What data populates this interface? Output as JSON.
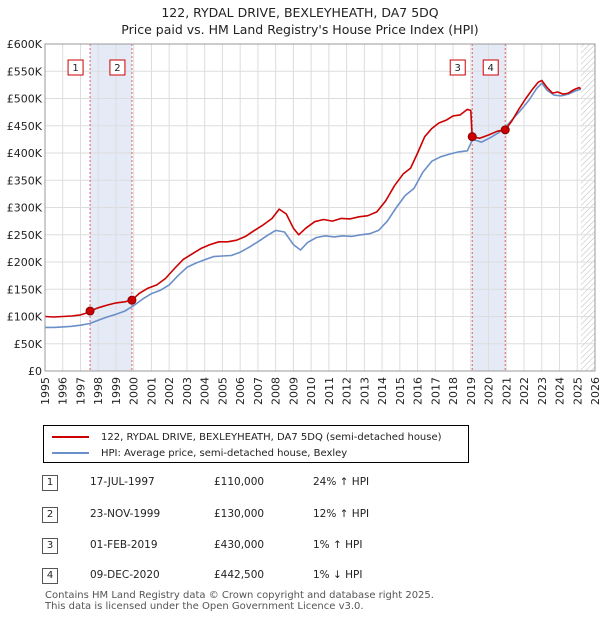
{
  "title_line1": "122, RYDAL DRIVE, BEXLEYHEATH, DA7 5DQ",
  "title_line2": "Price paid vs. HM Land Registry's House Price Index (HPI)",
  "chart_data": {
    "type": "line",
    "xlim": [
      1995,
      2026
    ],
    "ylim": [
      0,
      600000
    ],
    "x_ticks": [
      "1995",
      "1996",
      "1997",
      "1998",
      "1999",
      "2000",
      "2001",
      "2002",
      "2003",
      "2004",
      "2005",
      "2006",
      "2007",
      "2008",
      "2009",
      "2010",
      "2011",
      "2012",
      "2013",
      "2014",
      "2015",
      "2016",
      "2017",
      "2018",
      "2019",
      "2020",
      "2021",
      "2022",
      "2023",
      "2024",
      "2025",
      "2026"
    ],
    "y_ticks": [
      {
        "value": 0,
        "label": "£0"
      },
      {
        "value": 50000,
        "label": "£50K"
      },
      {
        "value": 100000,
        "label": "£100K"
      },
      {
        "value": 150000,
        "label": "£150K"
      },
      {
        "value": 200000,
        "label": "£200K"
      },
      {
        "value": 250000,
        "label": "£250K"
      },
      {
        "value": 300000,
        "label": "£300K"
      },
      {
        "value": 350000,
        "label": "£350K"
      },
      {
        "value": 400000,
        "label": "£400K"
      },
      {
        "value": 450000,
        "label": "£450K"
      },
      {
        "value": 500000,
        "label": "£500K"
      },
      {
        "value": 550000,
        "label": "£550K"
      },
      {
        "value": 600000,
        "label": "£600K"
      }
    ],
    "grid": true,
    "shaded_periods": [
      [
        1997.54,
        1999.9
      ],
      [
        2019.08,
        2020.94
      ]
    ],
    "hatched_region_start": 2025.2,
    "series": [
      {
        "name": "122, RYDAL DRIVE, BEXLEYHEATH, DA7 5DQ (semi-detached house)",
        "color": "#cc0000",
        "points": [
          [
            1995,
            100000
          ],
          [
            1995.5,
            99000
          ],
          [
            1996,
            100000
          ],
          [
            1996.5,
            101000
          ],
          [
            1997,
            103000
          ],
          [
            1997.3,
            106000
          ],
          [
            1997.54,
            110000
          ],
          [
            1998,
            116000
          ],
          [
            1998.5,
            121000
          ],
          [
            1999,
            125000
          ],
          [
            1999.5,
            127000
          ],
          [
            1999.9,
            130000
          ],
          [
            2000.3,
            142000
          ],
          [
            2000.8,
            152000
          ],
          [
            2001.3,
            158000
          ],
          [
            2001.8,
            170000
          ],
          [
            2002.3,
            188000
          ],
          [
            2002.8,
            205000
          ],
          [
            2003.3,
            215000
          ],
          [
            2003.8,
            225000
          ],
          [
            2004.3,
            232000
          ],
          [
            2004.8,
            237000
          ],
          [
            2005.3,
            237000
          ],
          [
            2005.8,
            240000
          ],
          [
            2006.3,
            247000
          ],
          [
            2006.8,
            258000
          ],
          [
            2007.3,
            268000
          ],
          [
            2007.8,
            280000
          ],
          [
            2008.2,
            297000
          ],
          [
            2008.6,
            288000
          ],
          [
            2009.0,
            262000
          ],
          [
            2009.3,
            250000
          ],
          [
            2009.7,
            262000
          ],
          [
            2010.2,
            274000
          ],
          [
            2010.7,
            278000
          ],
          [
            2011.2,
            275000
          ],
          [
            2011.7,
            280000
          ],
          [
            2012.2,
            279000
          ],
          [
            2012.7,
            283000
          ],
          [
            2013.2,
            285000
          ],
          [
            2013.7,
            292000
          ],
          [
            2014.2,
            312000
          ],
          [
            2014.7,
            340000
          ],
          [
            2015.2,
            362000
          ],
          [
            2015.6,
            372000
          ],
          [
            2016.0,
            400000
          ],
          [
            2016.4,
            430000
          ],
          [
            2016.8,
            445000
          ],
          [
            2017.2,
            455000
          ],
          [
            2017.6,
            460000
          ],
          [
            2018.0,
            468000
          ],
          [
            2018.4,
            470000
          ],
          [
            2018.8,
            480000
          ],
          [
            2019.0,
            478000
          ],
          [
            2019.08,
            430000
          ],
          [
            2019.5,
            427000
          ],
          [
            2020.0,
            433000
          ],
          [
            2020.5,
            440000
          ],
          [
            2020.94,
            442500
          ],
          [
            2021.3,
            458000
          ],
          [
            2021.7,
            480000
          ],
          [
            2022.1,
            500000
          ],
          [
            2022.5,
            518000
          ],
          [
            2022.8,
            530000
          ],
          [
            2023.0,
            533000
          ],
          [
            2023.3,
            520000
          ],
          [
            2023.6,
            510000
          ],
          [
            2023.9,
            512000
          ],
          [
            2024.2,
            508000
          ],
          [
            2024.5,
            510000
          ],
          [
            2024.8,
            516000
          ],
          [
            2025.1,
            520000
          ],
          [
            2025.2,
            518000
          ]
        ]
      },
      {
        "name": "HPI: Average price, semi-detached house, Bexley",
        "color": "#6b8fc9",
        "points": [
          [
            1995,
            80000
          ],
          [
            1995.5,
            80000
          ],
          [
            1996,
            81000
          ],
          [
            1996.5,
            82000
          ],
          [
            1997,
            84000
          ],
          [
            1997.5,
            87000
          ],
          [
            1998,
            93000
          ],
          [
            1998.5,
            99000
          ],
          [
            1999,
            104000
          ],
          [
            1999.5,
            110000
          ],
          [
            2000,
            120000
          ],
          [
            2000.5,
            132000
          ],
          [
            2001,
            142000
          ],
          [
            2001.5,
            148000
          ],
          [
            2002,
            158000
          ],
          [
            2002.5,
            175000
          ],
          [
            2003,
            190000
          ],
          [
            2003.5,
            198000
          ],
          [
            2004,
            204000
          ],
          [
            2004.5,
            210000
          ],
          [
            2005,
            211000
          ],
          [
            2005.5,
            212000
          ],
          [
            2006,
            218000
          ],
          [
            2006.5,
            227000
          ],
          [
            2007,
            237000
          ],
          [
            2007.5,
            248000
          ],
          [
            2008,
            258000
          ],
          [
            2008.5,
            255000
          ],
          [
            2009,
            232000
          ],
          [
            2009.4,
            222000
          ],
          [
            2009.8,
            236000
          ],
          [
            2010.3,
            245000
          ],
          [
            2010.8,
            248000
          ],
          [
            2011.3,
            246000
          ],
          [
            2011.8,
            248000
          ],
          [
            2012.3,
            247000
          ],
          [
            2012.8,
            250000
          ],
          [
            2013.3,
            252000
          ],
          [
            2013.8,
            258000
          ],
          [
            2014.3,
            275000
          ],
          [
            2014.8,
            300000
          ],
          [
            2015.3,
            322000
          ],
          [
            2015.8,
            335000
          ],
          [
            2016.3,
            365000
          ],
          [
            2016.8,
            385000
          ],
          [
            2017.3,
            393000
          ],
          [
            2017.8,
            398000
          ],
          [
            2018.3,
            402000
          ],
          [
            2018.8,
            404000
          ],
          [
            2019.1,
            425000
          ],
          [
            2019.6,
            420000
          ],
          [
            2020.1,
            428000
          ],
          [
            2020.6,
            438000
          ],
          [
            2020.94,
            447000
          ],
          [
            2021.3,
            460000
          ],
          [
            2021.8,
            478000
          ],
          [
            2022.3,
            498000
          ],
          [
            2022.7,
            518000
          ],
          [
            2023.0,
            528000
          ],
          [
            2023.3,
            515000
          ],
          [
            2023.7,
            506000
          ],
          [
            2024.1,
            505000
          ],
          [
            2024.5,
            508000
          ],
          [
            2024.9,
            514000
          ],
          [
            2025.2,
            517000
          ]
        ]
      }
    ],
    "transactions": [
      {
        "label": "1",
        "x": 1997.54,
        "price": 110000
      },
      {
        "label": "2",
        "x": 1999.9,
        "price": 130000
      },
      {
        "label": "3",
        "x": 2019.08,
        "price": 430000
      },
      {
        "label": "4",
        "x": 2020.94,
        "price": 442500
      }
    ]
  },
  "legend": [
    {
      "label": "122, RYDAL DRIVE, BEXLEYHEATH, DA7 5DQ (semi-detached house)",
      "color": "#cc0000"
    },
    {
      "label": "HPI: Average price, semi-detached house, Bexley",
      "color": "#6b8fc9"
    }
  ],
  "table": [
    {
      "num": "1",
      "date": "17-JUL-1997",
      "price": "£110,000",
      "hpi": "24% ↑ HPI"
    },
    {
      "num": "2",
      "date": "23-NOV-1999",
      "price": "£130,000",
      "hpi": "12% ↑ HPI"
    },
    {
      "num": "3",
      "date": "01-FEB-2019",
      "price": "£430,000",
      "hpi": "1% ↑ HPI"
    },
    {
      "num": "4",
      "date": "09-DEC-2020",
      "price": "£442,500",
      "hpi": "1% ↓ HPI"
    }
  ],
  "footer_line1": "Contains HM Land Registry data © Crown copyright and database right 2025.",
  "footer_line2": "This data is licensed under the Open Government Licence v3.0."
}
